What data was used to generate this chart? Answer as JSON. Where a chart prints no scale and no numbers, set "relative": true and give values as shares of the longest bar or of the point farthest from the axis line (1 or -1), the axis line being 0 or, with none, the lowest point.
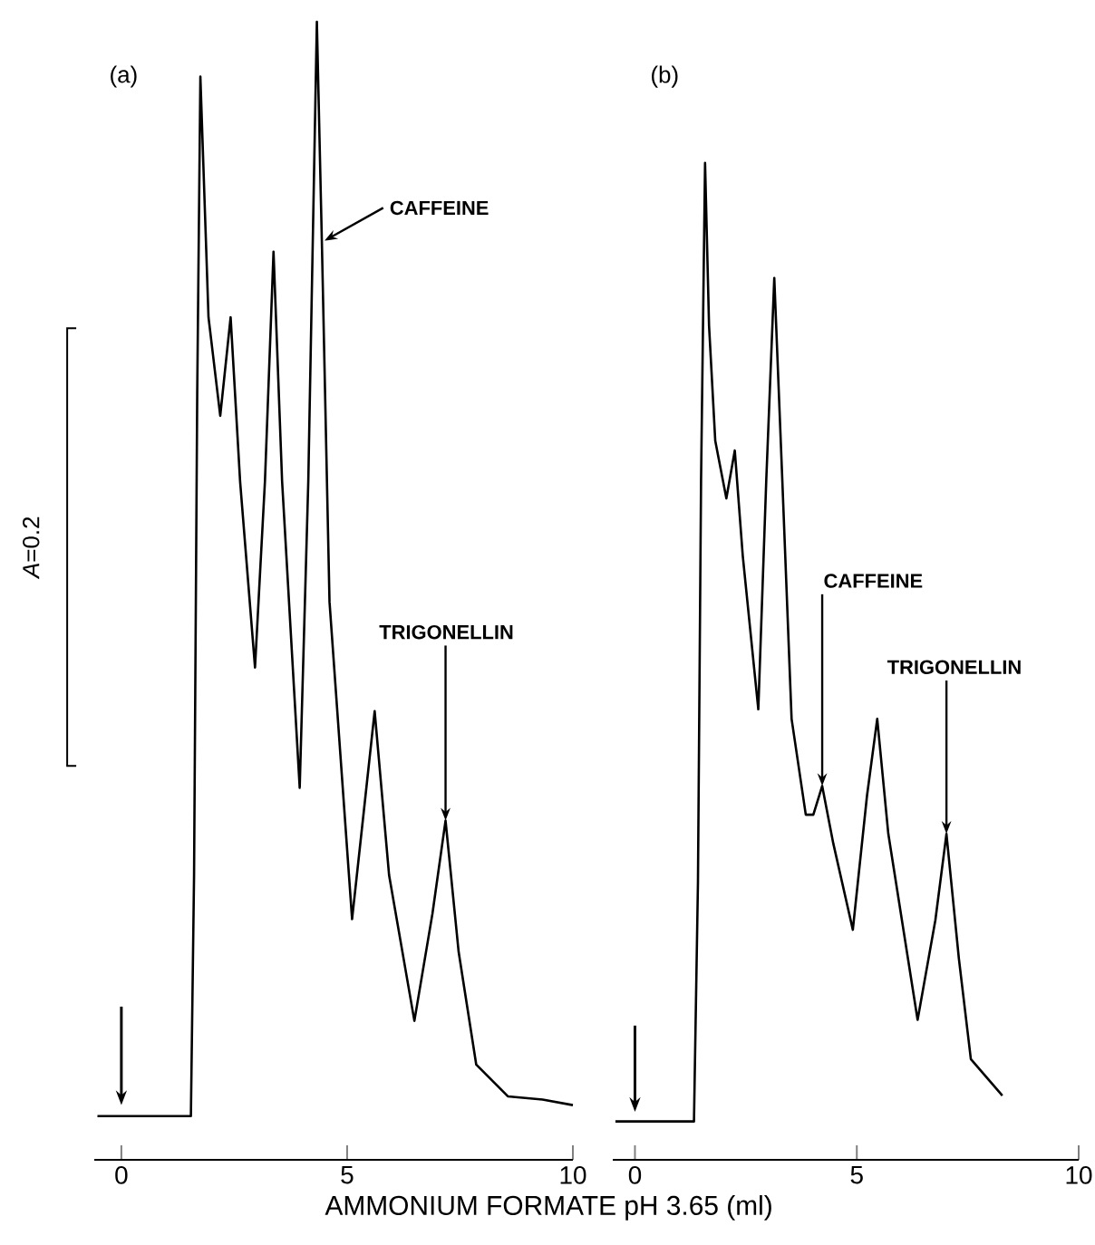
{
  "chart_data": [
    {
      "type": "line",
      "title": "(a)",
      "xlabel": "AMMONIUM FORMATE pH 3.65 (ml)",
      "relative": true,
      "color": "#000000",
      "xlim": [
        -0.6,
        10
      ],
      "xticks": [
        0,
        5,
        10
      ],
      "x": [
        -0.53,
        1.54,
        1.61,
        1.68,
        1.75,
        1.93,
        2.19,
        2.42,
        2.63,
        2.96,
        3.18,
        3.37,
        3.56,
        3.95,
        4.14,
        4.33,
        4.44,
        4.61,
        5.11,
        5.4,
        5.61,
        5.93,
        6.49,
        6.89,
        7.18,
        7.47,
        7.86,
        8.56,
        9.33,
        10.0
      ],
      "values": [
        0,
        0,
        0.22,
        0.66,
        0.95,
        0.73,
        0.64,
        0.73,
        0.58,
        0.41,
        0.58,
        0.79,
        0.58,
        0.3,
        0.58,
        1.0,
        0.8,
        0.47,
        0.18,
        0.29,
        0.37,
        0.22,
        0.087,
        0.185,
        0.27,
        0.15,
        0.047,
        0.018,
        0.015,
        0.01
      ],
      "annotations": [
        "*A*=0.2",
        {
          "text": "CAFFEINE",
          "x": 4.5,
          "y": 0.8
        },
        {
          "text": "TRIGONELLIN",
          "x": 7.18,
          "y": 0.27
        }
      ]
    },
    {
      "type": "line",
      "title": "(b)",
      "relative": true,
      "color": "#000000",
      "xlim": [
        -0.5,
        10
      ],
      "xticks": [
        0,
        5,
        10
      ],
      "x": [
        -0.44,
        1.33,
        1.42,
        1.49,
        1.58,
        1.67,
        1.81,
        2.06,
        2.25,
        2.43,
        2.78,
        2.96,
        3.14,
        3.32,
        3.53,
        3.85,
        4.02,
        4.22,
        4.47,
        4.91,
        5.23,
        5.46,
        5.71,
        6.37,
        6.77,
        7.02,
        7.3,
        7.57,
        8.28
      ],
      "values": [
        0,
        0,
        0.25,
        0.67,
        1.0,
        0.83,
        0.71,
        0.65,
        0.7,
        0.59,
        0.43,
        0.67,
        0.88,
        0.67,
        0.42,
        0.32,
        0.32,
        0.35,
        0.29,
        0.2,
        0.34,
        0.42,
        0.3,
        0.106,
        0.21,
        0.3,
        0.17,
        0.065,
        0.027
      ],
      "annotations": [
        {
          "text": "CAFFEINE",
          "x": 4.22,
          "y": 0.35
        },
        {
          "text": "TRIGONELLIN",
          "x": 7.02,
          "y": 0.3
        }
      ]
    }
  ]
}
